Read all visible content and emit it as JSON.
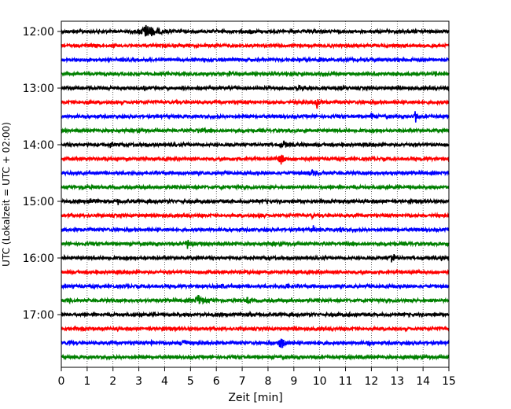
{
  "chart_data": {
    "type": "line",
    "subtype": "helicorder",
    "xlabel": "Zeit  [min]",
    "ylabel": "UTC (Lokalzeit = UTC + 02:00)",
    "xlim": [
      0,
      15
    ],
    "xticks": [
      0,
      1,
      2,
      3,
      4,
      5,
      6,
      7,
      8,
      9,
      10,
      11,
      12,
      13,
      14,
      15
    ],
    "ytick_labels": [
      "12:00",
      "13:00",
      "14:00",
      "15:00",
      "16:00",
      "17:00"
    ],
    "line_interval_minutes": 15,
    "grid": "vertical dotted",
    "colors": [
      "#000000",
      "#ff0000",
      "#0000ff",
      "#008000"
    ],
    "traces": [
      {
        "start": "12:00",
        "events": [
          [
            3.3,
            1.0,
            0.5
          ],
          [
            7.3,
            0.3,
            0.15
          ],
          [
            9.8,
            0.2,
            0.12
          ]
        ]
      },
      {
        "start": "12:15",
        "events": [
          [
            1.3,
            0.2,
            0.1
          ],
          [
            6.8,
            0.2,
            0.1
          ]
        ]
      },
      {
        "start": "12:30",
        "events": [
          [
            10.0,
            0.3,
            0.1
          ]
        ]
      },
      {
        "start": "12:45",
        "events": [
          [
            6.5,
            0.5,
            0.05
          ],
          [
            14.5,
            0.25,
            0.1
          ]
        ]
      },
      {
        "start": "13:00",
        "events": [
          [
            3.2,
            0.2,
            0.1
          ],
          [
            9.2,
            0.5,
            0.1
          ],
          [
            10.8,
            0.2,
            0.1
          ]
        ]
      },
      {
        "start": "13:15",
        "events": [
          [
            1.0,
            0.3,
            0.1
          ],
          [
            9.9,
            1.0,
            0.1
          ]
        ]
      },
      {
        "start": "13:30",
        "events": [
          [
            12.0,
            0.4,
            0.1
          ],
          [
            13.7,
            1.8,
            0.05
          ]
        ]
      },
      {
        "start": "13:45",
        "events": [
          [
            5.3,
            0.25,
            0.2
          ]
        ]
      },
      {
        "start": "14:00",
        "events": [
          [
            1.9,
            0.4,
            0.1
          ],
          [
            8.6,
            0.5,
            0.2
          ]
        ]
      },
      {
        "start": "14:15",
        "events": [
          [
            8.5,
            0.8,
            0.2
          ]
        ]
      },
      {
        "start": "14:30",
        "events": [
          [
            9.7,
            0.3,
            0.3
          ],
          [
            12.8,
            0.2,
            0.1
          ]
        ]
      },
      {
        "start": "14:45",
        "events": [
          [
            0.8,
            0.2,
            0.1
          ]
        ]
      },
      {
        "start": "15:00",
        "events": [
          [
            1.1,
            0.4,
            0.15
          ],
          [
            2.2,
            0.6,
            0.05
          ]
        ]
      },
      {
        "start": "15:15",
        "events": [
          [
            7.7,
            0.3,
            0.1
          ],
          [
            9.7,
            0.25,
            0.1
          ]
        ]
      },
      {
        "start": "15:30",
        "events": [
          [
            9.75,
            0.6,
            0.05
          ],
          [
            10.8,
            0.25,
            0.1
          ]
        ]
      },
      {
        "start": "15:45",
        "events": [
          [
            4.9,
            0.8,
            0.2
          ],
          [
            14.9,
            0.3,
            0.05
          ]
        ]
      },
      {
        "start": "16:00",
        "events": [
          [
            0.1,
            0.3,
            0.05
          ],
          [
            12.8,
            1.2,
            0.12
          ],
          [
            14.7,
            0.2,
            0.1
          ]
        ]
      },
      {
        "start": "16:15",
        "events": [
          [
            9.0,
            0.2,
            0.1
          ]
        ]
      },
      {
        "start": "16:30",
        "events": [
          [
            6.2,
            0.2,
            0.15
          ],
          [
            8.7,
            0.3,
            0.15
          ]
        ]
      },
      {
        "start": "16:45",
        "events": [
          [
            0.3,
            0.3,
            0.1
          ],
          [
            5.3,
            0.8,
            0.25
          ],
          [
            7.2,
            0.5,
            0.1
          ]
        ]
      },
      {
        "start": "17:00",
        "events": [
          [
            3.6,
            0.2,
            0.1
          ],
          [
            7.3,
            0.2,
            0.1
          ],
          [
            11.2,
            0.3,
            0.1
          ]
        ]
      },
      {
        "start": "17:15",
        "events": [
          [
            0.8,
            0.2,
            0.1
          ],
          [
            3.9,
            0.2,
            0.1
          ],
          [
            12.7,
            0.15,
            0.1
          ]
        ]
      },
      {
        "start": "17:30",
        "events": [
          [
            0.3,
            0.4,
            0.1
          ],
          [
            3.5,
            0.4,
            0.08
          ],
          [
            4.7,
            0.8,
            0.15
          ],
          [
            8.5,
            1.0,
            0.2
          ],
          [
            10.0,
            0.3,
            0.15
          ],
          [
            11.9,
            0.3,
            0.1
          ]
        ]
      },
      {
        "start": "17:45",
        "events": [
          [
            11.5,
            0.2,
            0.1
          ],
          [
            13.3,
            0.2,
            0.1
          ]
        ]
      }
    ]
  }
}
